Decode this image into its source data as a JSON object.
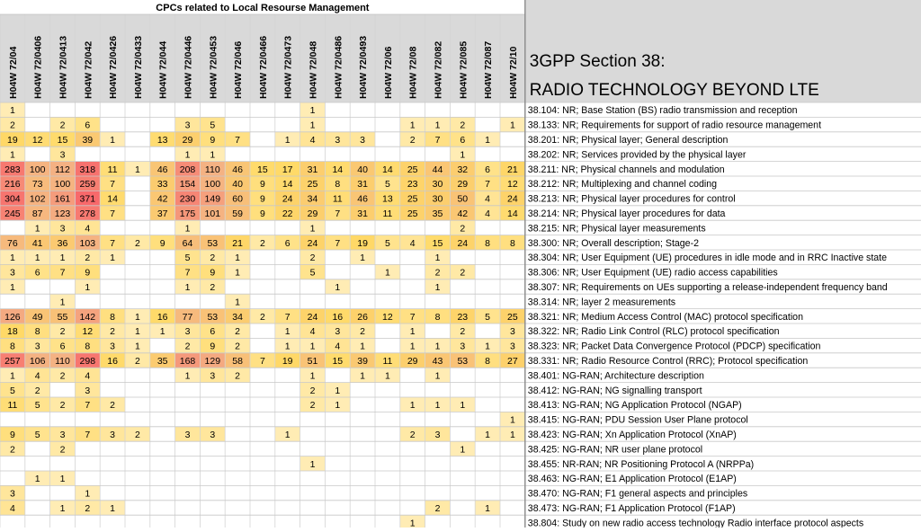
{
  "chart_data": {
    "type": "heatmap",
    "title": "CPCs related to Local Resourse Management",
    "side_title_lines": [
      "3GPP Section 38:",
      "RADIO TECHNOLOGY BEYOND LTE"
    ],
    "columns": [
      "H04W 72/04",
      "H04W 72/0406",
      "H04W 72/0413",
      "H04W 72/042",
      "H04W 72/0426",
      "H04W 72/0433",
      "H04W 72/044",
      "H04W 72/0446",
      "H04W 72/0453",
      "H04W 72/046",
      "H04W 72/0466",
      "H04W 72/0473",
      "H04W 72/048",
      "H04W 72/0486",
      "H04W 72/0493",
      "H04W 72/06",
      "H04W 72/08",
      "H04W 72/082",
      "H04W 72/085",
      "H04W 72/087",
      "H04W 72/10"
    ],
    "rows": [
      {
        "label": "38.104: NR; Base Station (BS) radio transmission and reception",
        "values": [
          1,
          null,
          null,
          null,
          null,
          null,
          null,
          null,
          null,
          null,
          null,
          null,
          1,
          null,
          null,
          null,
          null,
          null,
          null,
          null,
          null
        ]
      },
      {
        "label": "38.133: NR; Requirements for support of radio resource management",
        "values": [
          2,
          null,
          2,
          6,
          null,
          null,
          null,
          3,
          5,
          null,
          null,
          null,
          1,
          null,
          null,
          null,
          1,
          1,
          2,
          null,
          1
        ]
      },
      {
        "label": "38.201: NR; Physical layer; General description",
        "values": [
          19,
          12,
          15,
          39,
          1,
          null,
          13,
          29,
          9,
          7,
          null,
          1,
          4,
          3,
          3,
          null,
          2,
          7,
          6,
          1,
          null
        ]
      },
      {
        "label": "38.202: NR; Services provided by the physical layer",
        "values": [
          1,
          null,
          3,
          null,
          null,
          null,
          null,
          1,
          1,
          null,
          null,
          null,
          null,
          null,
          null,
          null,
          null,
          null,
          1,
          null,
          null
        ]
      },
      {
        "label": "38.211: NR; Physical channels and modulation",
        "values": [
          283,
          100,
          112,
          318,
          11,
          1,
          46,
          208,
          110,
          46,
          15,
          17,
          31,
          14,
          40,
          14,
          25,
          44,
          32,
          6,
          21
        ]
      },
      {
        "label": "38.212: NR; Multiplexing and channel coding",
        "values": [
          216,
          73,
          100,
          259,
          7,
          null,
          33,
          154,
          100,
          40,
          9,
          14,
          25,
          8,
          31,
          5,
          23,
          30,
          29,
          7,
          12
        ]
      },
      {
        "label": "38.213: NR; Physical layer procedures for control",
        "values": [
          304,
          102,
          161,
          371,
          14,
          null,
          42,
          230,
          149,
          60,
          9,
          24,
          34,
          11,
          46,
          13,
          25,
          30,
          50,
          4,
          24
        ]
      },
      {
        "label": "38.214: NR; Physical layer procedures for data",
        "values": [
          245,
          87,
          123,
          278,
          7,
          null,
          37,
          175,
          101,
          59,
          9,
          22,
          29,
          7,
          31,
          11,
          25,
          35,
          42,
          4,
          14
        ]
      },
      {
        "label": "38.215: NR; Physical layer measurements",
        "values": [
          null,
          1,
          3,
          4,
          null,
          null,
          null,
          1,
          null,
          null,
          null,
          null,
          1,
          null,
          null,
          null,
          null,
          null,
          2,
          null,
          null
        ]
      },
      {
        "label": "38.300: NR; Overall description; Stage-2",
        "values": [
          76,
          41,
          36,
          103,
          7,
          2,
          9,
          64,
          53,
          21,
          2,
          6,
          24,
          7,
          19,
          5,
          4,
          15,
          24,
          8,
          8
        ]
      },
      {
        "label": "38.304: NR; User Equipment (UE) procedures in idle mode and in RRC Inactive state",
        "values": [
          1,
          1,
          1,
          2,
          1,
          null,
          null,
          5,
          2,
          1,
          null,
          null,
          2,
          null,
          1,
          null,
          null,
          1,
          null,
          null,
          null
        ]
      },
      {
        "label": "38.306: NR; User Equipment (UE) radio access capabilities",
        "values": [
          3,
          6,
          7,
          9,
          null,
          null,
          null,
          7,
          9,
          1,
          null,
          null,
          5,
          null,
          null,
          1,
          null,
          2,
          2,
          null,
          null
        ]
      },
      {
        "label": "38.307: NR; Requirements on UEs supporting a release-independent frequency band",
        "values": [
          1,
          null,
          null,
          1,
          null,
          null,
          null,
          1,
          2,
          null,
          null,
          null,
          null,
          1,
          null,
          null,
          null,
          1,
          null,
          null,
          null
        ]
      },
      {
        "label": "38.314: NR; layer 2 measurements",
        "values": [
          null,
          null,
          1,
          null,
          null,
          null,
          null,
          null,
          null,
          1,
          null,
          null,
          null,
          null,
          null,
          null,
          null,
          null,
          null,
          null,
          null
        ]
      },
      {
        "label": "38.321: NR; Medium Access Control (MAC) protocol specification",
        "values": [
          126,
          49,
          55,
          142,
          8,
          1,
          16,
          77,
          53,
          34,
          2,
          7,
          24,
          16,
          26,
          12,
          7,
          8,
          23,
          5,
          25
        ]
      },
      {
        "label": "38.322: NR; Radio Link Control (RLC) protocol specification",
        "values": [
          18,
          8,
          2,
          12,
          2,
          1,
          1,
          3,
          6,
          2,
          null,
          1,
          4,
          3,
          2,
          null,
          1,
          null,
          2,
          null,
          3
        ]
      },
      {
        "label": "38.323: NR; Packet Data Convergence Protocol (PDCP) specification",
        "values": [
          8,
          3,
          6,
          8,
          3,
          1,
          null,
          2,
          9,
          2,
          null,
          1,
          1,
          4,
          1,
          null,
          1,
          1,
          3,
          1,
          3
        ]
      },
      {
        "label": "38.331: NR; Radio Resource Control (RRC); Protocol specification",
        "values": [
          257,
          106,
          110,
          298,
          16,
          2,
          35,
          168,
          129,
          58,
          7,
          19,
          51,
          15,
          39,
          11,
          29,
          43,
          53,
          8,
          27
        ]
      },
      {
        "label": "38.401: NG-RAN; Architecture description",
        "values": [
          1,
          4,
          2,
          4,
          null,
          null,
          null,
          1,
          3,
          2,
          null,
          null,
          1,
          null,
          1,
          1,
          null,
          1,
          null,
          null,
          null
        ]
      },
      {
        "label": "38.412: NG-RAN; NG signalling transport",
        "values": [
          5,
          2,
          null,
          3,
          null,
          null,
          null,
          null,
          null,
          null,
          null,
          null,
          2,
          1,
          null,
          null,
          null,
          null,
          null,
          null,
          null
        ]
      },
      {
        "label": "38.413: NG-RAN; NG Application Protocol (NGAP)",
        "values": [
          11,
          5,
          2,
          7,
          2,
          null,
          null,
          null,
          null,
          null,
          null,
          null,
          2,
          1,
          null,
          null,
          1,
          1,
          1,
          null,
          null
        ]
      },
      {
        "label": "38.415: NG-RAN; PDU Session User Plane protocol",
        "values": [
          null,
          null,
          null,
          null,
          null,
          null,
          null,
          null,
          null,
          null,
          null,
          null,
          null,
          null,
          null,
          null,
          null,
          null,
          null,
          null,
          1
        ]
      },
      {
        "label": "38.423: NG-RAN; Xn Application Protocol (XnAP)",
        "values": [
          9,
          5,
          3,
          7,
          3,
          2,
          null,
          3,
          3,
          null,
          null,
          1,
          null,
          null,
          null,
          null,
          2,
          3,
          null,
          1,
          1
        ]
      },
      {
        "label": "38.425: NG-RAN; NR user plane protocol",
        "values": [
          2,
          null,
          2,
          null,
          null,
          null,
          null,
          null,
          null,
          null,
          null,
          null,
          null,
          null,
          null,
          null,
          null,
          null,
          1,
          null,
          null
        ]
      },
      {
        "label": "38.455: NR-RAN; NR Positioning Protocol A (NRPPa)",
        "values": [
          null,
          null,
          null,
          null,
          null,
          null,
          null,
          null,
          null,
          null,
          null,
          null,
          1,
          null,
          null,
          null,
          null,
          null,
          null,
          null,
          null
        ]
      },
      {
        "label": "38.463: NG-RAN; E1 Application Protocol (E1AP)",
        "values": [
          null,
          1,
          1,
          null,
          null,
          null,
          null,
          null,
          null,
          null,
          null,
          null,
          null,
          null,
          null,
          null,
          null,
          null,
          null,
          null,
          null
        ]
      },
      {
        "label": "38.470: NG-RAN; F1 general aspects and principles",
        "values": [
          3,
          null,
          null,
          1,
          null,
          null,
          null,
          null,
          null,
          null,
          null,
          null,
          null,
          null,
          null,
          null,
          null,
          null,
          null,
          null,
          null
        ]
      },
      {
        "label": "38.473: NG-RAN; F1 Application Protocol (F1AP)",
        "values": [
          4,
          null,
          1,
          2,
          1,
          null,
          null,
          null,
          null,
          null,
          null,
          null,
          null,
          null,
          null,
          null,
          null,
          2,
          null,
          1,
          null
        ]
      },
      {
        "label": "38.804: Study on new radio access technology Radio interface protocol aspects",
        "values": [
          null,
          null,
          null,
          null,
          null,
          null,
          null,
          null,
          null,
          null,
          null,
          null,
          null,
          null,
          null,
          null,
          1,
          null,
          null,
          null,
          null
        ]
      }
    ],
    "color_scale": {
      "low": "#fff2cc",
      "mid": "#ffd966",
      "high": "#f4b183",
      "top": "#f8696b"
    },
    "header_fill": "#d9d9d9",
    "grid": true
  }
}
